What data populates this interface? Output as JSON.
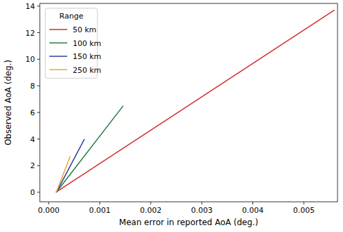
{
  "chart_data": {
    "type": "line",
    "x_label": "Mean error in reported AoA (deg.)",
    "y_label": "Observed AoA (deg.)",
    "legend_title": "Range",
    "legend": "upper left",
    "grid": false,
    "xlim": [
      -0.000175,
      0.00566
    ],
    "ylim": [
      -0.72,
      14.2
    ],
    "xticks": [
      {
        "value": 0,
        "label": "0.000"
      },
      {
        "value": 0.001,
        "label": "0.001"
      },
      {
        "value": 0.002,
        "label": "0.002"
      },
      {
        "value": 0.003,
        "label": "0.003"
      },
      {
        "value": 0.004,
        "label": "0.004"
      },
      {
        "value": 0.005,
        "label": "0.005"
      }
    ],
    "yticks": [
      0,
      2,
      4,
      6,
      8,
      10,
      12,
      14
    ],
    "series": [
      {
        "name": "50 km",
        "color": "#d42a2a",
        "x": [
          0.00014,
          0.0056
        ],
        "values": [
          0,
          13.7
        ]
      },
      {
        "name": "100 km",
        "color": "#1e7b3c",
        "x": [
          0.00015,
          0.00146
        ],
        "values": [
          0,
          6.5
        ]
      },
      {
        "name": "150 km",
        "color": "#2a3f9a",
        "x": [
          0.00015,
          0.0007
        ],
        "values": [
          0,
          4.0
        ]
      },
      {
        "name": "250 km",
        "color": "#f5a030",
        "x": [
          0.00015,
          0.00042
        ],
        "values": [
          0,
          2.7
        ]
      }
    ]
  }
}
